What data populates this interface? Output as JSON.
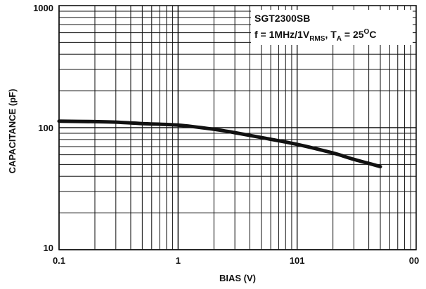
{
  "chart_data": {
    "type": "line",
    "xlabel": "BIAS (V)",
    "ylabel": "CAPACITANCE (pF)",
    "x_scale": "log",
    "y_scale": "log",
    "xlim": [
      0.1,
      100
    ],
    "ylim": [
      10,
      1000
    ],
    "grid": true,
    "x_tick_labels": [
      "0.1",
      "1",
      "101",
      "00"
    ],
    "y_tick_labels": [
      "10",
      "100",
      "1000"
    ],
    "legend": {
      "line1": "SGT2300SB",
      "line2_prefix": "f = 1MHz/1V",
      "line2_sub1": "RMS",
      "line2_mid": ", T",
      "line2_sub2": "A",
      "line2_eq": " = 25",
      "line2_sup": "O",
      "line2_suffix": "C",
      "placement": "top-right"
    },
    "series": [
      {
        "x": [
          0.1,
          0.2,
          0.3,
          0.5,
          1,
          2,
          3,
          5,
          10,
          20,
          30,
          50
        ],
        "y": [
          113,
          112,
          111,
          108,
          105,
          97,
          91,
          83,
          73,
          62,
          55,
          48
        ]
      }
    ],
    "colors": {
      "line": "#111111",
      "grid": "#111111"
    }
  }
}
